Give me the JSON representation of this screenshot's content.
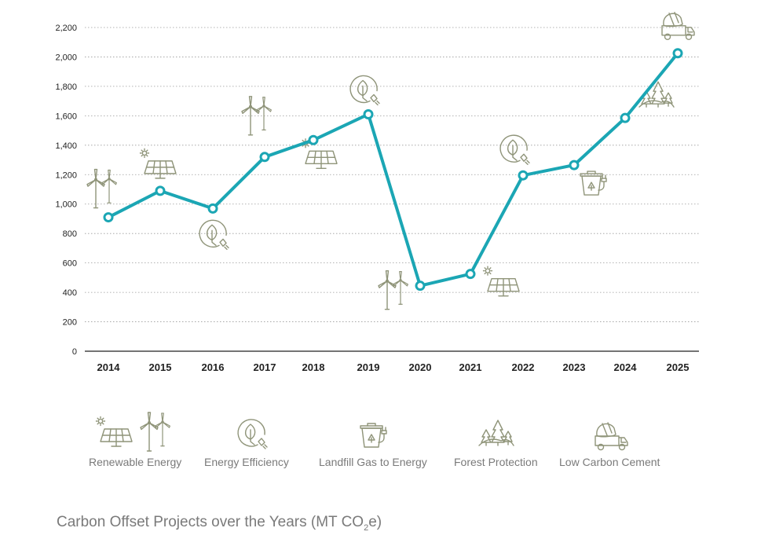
{
  "chart_data": {
    "type": "line",
    "title_parts": {
      "main": "Carbon Offset Projects over the Years (MT CO",
      "sub": "2",
      "tail": "e)"
    },
    "x": [
      "2014",
      "2015",
      "2016",
      "2017",
      "2018",
      "2019",
      "2020",
      "2021",
      "2022",
      "2023",
      "2024",
      "2025"
    ],
    "series": [
      {
        "values": [
          910,
          1090,
          970,
          1320,
          1435,
          1610,
          445,
          525,
          1195,
          1265,
          1585,
          2025
        ]
      }
    ],
    "point_categories": [
      "Renewable Energy",
      "Renewable Energy",
      "Energy Efficiency",
      "Renewable Energy",
      "Renewable Energy",
      "Energy Efficiency",
      "Renewable Energy",
      "Renewable Energy",
      "Energy Efficiency",
      "Landfill Gas to Energy",
      "Forest Protection",
      "Low Carbon Cement"
    ],
    "yticks": [
      "0",
      "200",
      "400",
      "600",
      "800",
      "1,000",
      "1,200",
      "1,400",
      "1,600",
      "1,800",
      "2,000",
      "2,200"
    ],
    "ylim": [
      0,
      2200
    ],
    "grid": true,
    "line_color": "#1ba6b4",
    "icon_color": "#8f9479",
    "legend": {
      "placement": "bottom",
      "items": [
        {
          "label": "Renewable Energy",
          "icon": "solar-wind-icon"
        },
        {
          "label": "Energy Efficiency",
          "icon": "leaf-plug-icon"
        },
        {
          "label": "Landfill Gas to Energy",
          "icon": "recycle-bin-plug-icon"
        },
        {
          "label": "Forest Protection",
          "icon": "forest-trees-icon"
        },
        {
          "label": "Low Carbon Cement",
          "icon": "cement-truck-icon"
        }
      ]
    }
  }
}
